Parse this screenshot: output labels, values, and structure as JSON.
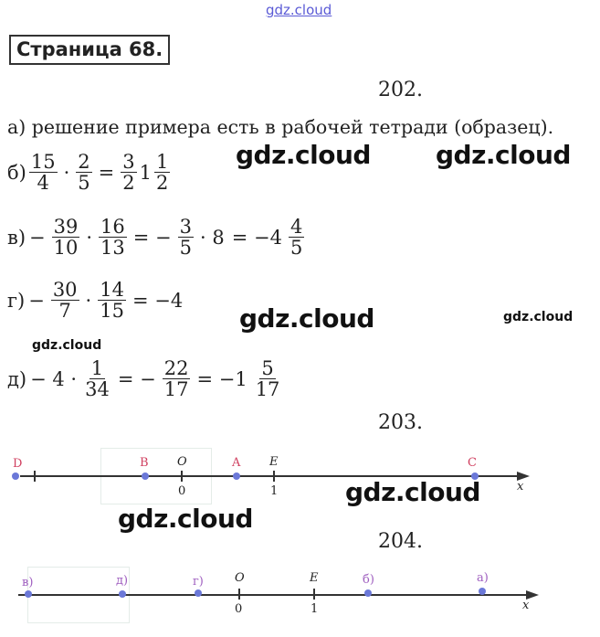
{
  "watermark": "gdz.cloud",
  "page_title": "Страница 68.",
  "task202": {
    "number": "202.",
    "a": "а) решение примера есть в рабочей тетради (образец).",
    "b": {
      "label": "б)",
      "f1": [
        "15",
        "4"
      ],
      "op1": "·",
      "f2": [
        "2",
        "5"
      ],
      "eq": "=",
      "f3": [
        "3",
        "2"
      ],
      "whole": "1",
      "f4": [
        "1",
        "2"
      ]
    },
    "v": {
      "label": "в)",
      "minus": "−",
      "f1": [
        "39",
        "10"
      ],
      "op1": "·",
      "f2": [
        "16",
        "13"
      ],
      "eq1": "= −",
      "f3": [
        "3",
        "5"
      ],
      "op2": "· 8",
      "eq2": "= −4",
      "f4": [
        "4",
        "5"
      ]
    },
    "g": {
      "label": "г)",
      "minus": "−",
      "f1": [
        "30",
        "7"
      ],
      "op1": "·",
      "f2": [
        "14",
        "15"
      ],
      "result": "= −4"
    },
    "d": {
      "label": "д)",
      "pre": "− 4 ·",
      "f1": [
        "1",
        "34"
      ],
      "eq1": "= −",
      "f2": [
        "22",
        "17"
      ],
      "eq2": "= −1",
      "f3": [
        "5",
        "17"
      ]
    }
  },
  "task203": {
    "number": "203.",
    "points": [
      "D",
      "B",
      "O",
      "A",
      "E",
      "C"
    ],
    "ticks": [
      "0",
      "1"
    ],
    "axis": "x"
  },
  "task204": {
    "number": "204.",
    "points": [
      "в)",
      "д)",
      "г)",
      "O",
      "E",
      "б)",
      "а)"
    ],
    "ticks": [
      "0",
      "1"
    ],
    "axis": "x"
  }
}
